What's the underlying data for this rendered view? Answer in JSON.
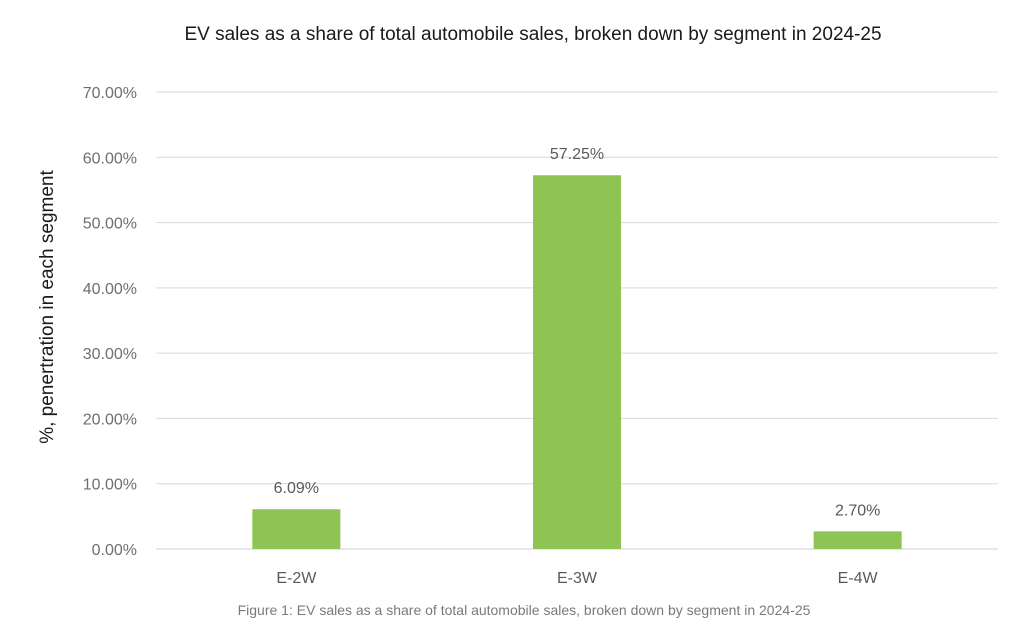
{
  "chart_data": {
    "type": "bar",
    "title": "EV sales as a share of total automobile sales, broken down by segment in 2024-25",
    "ylabel": "%, penertration in each segment",
    "xlabel": "",
    "categories": [
      "E-2W",
      "E-3W",
      "E-4W"
    ],
    "values": [
      6.09,
      57.25,
      2.7
    ],
    "value_labels": [
      "6.09%",
      "57.25%",
      "2.70%"
    ],
    "ylim": [
      0,
      70
    ],
    "yticks": [
      0,
      10,
      20,
      30,
      40,
      50,
      60,
      70
    ],
    "ytick_labels": [
      "0.00%",
      "10.00%",
      "20.00%",
      "30.00%",
      "40.00%",
      "50.00%",
      "60.00%",
      "70.00%"
    ],
    "grid": true,
    "bar_color": "#8dc454",
    "caption": "Figure 1: EV sales as a share of total automobile sales, broken down by segment in 2024-25"
  }
}
